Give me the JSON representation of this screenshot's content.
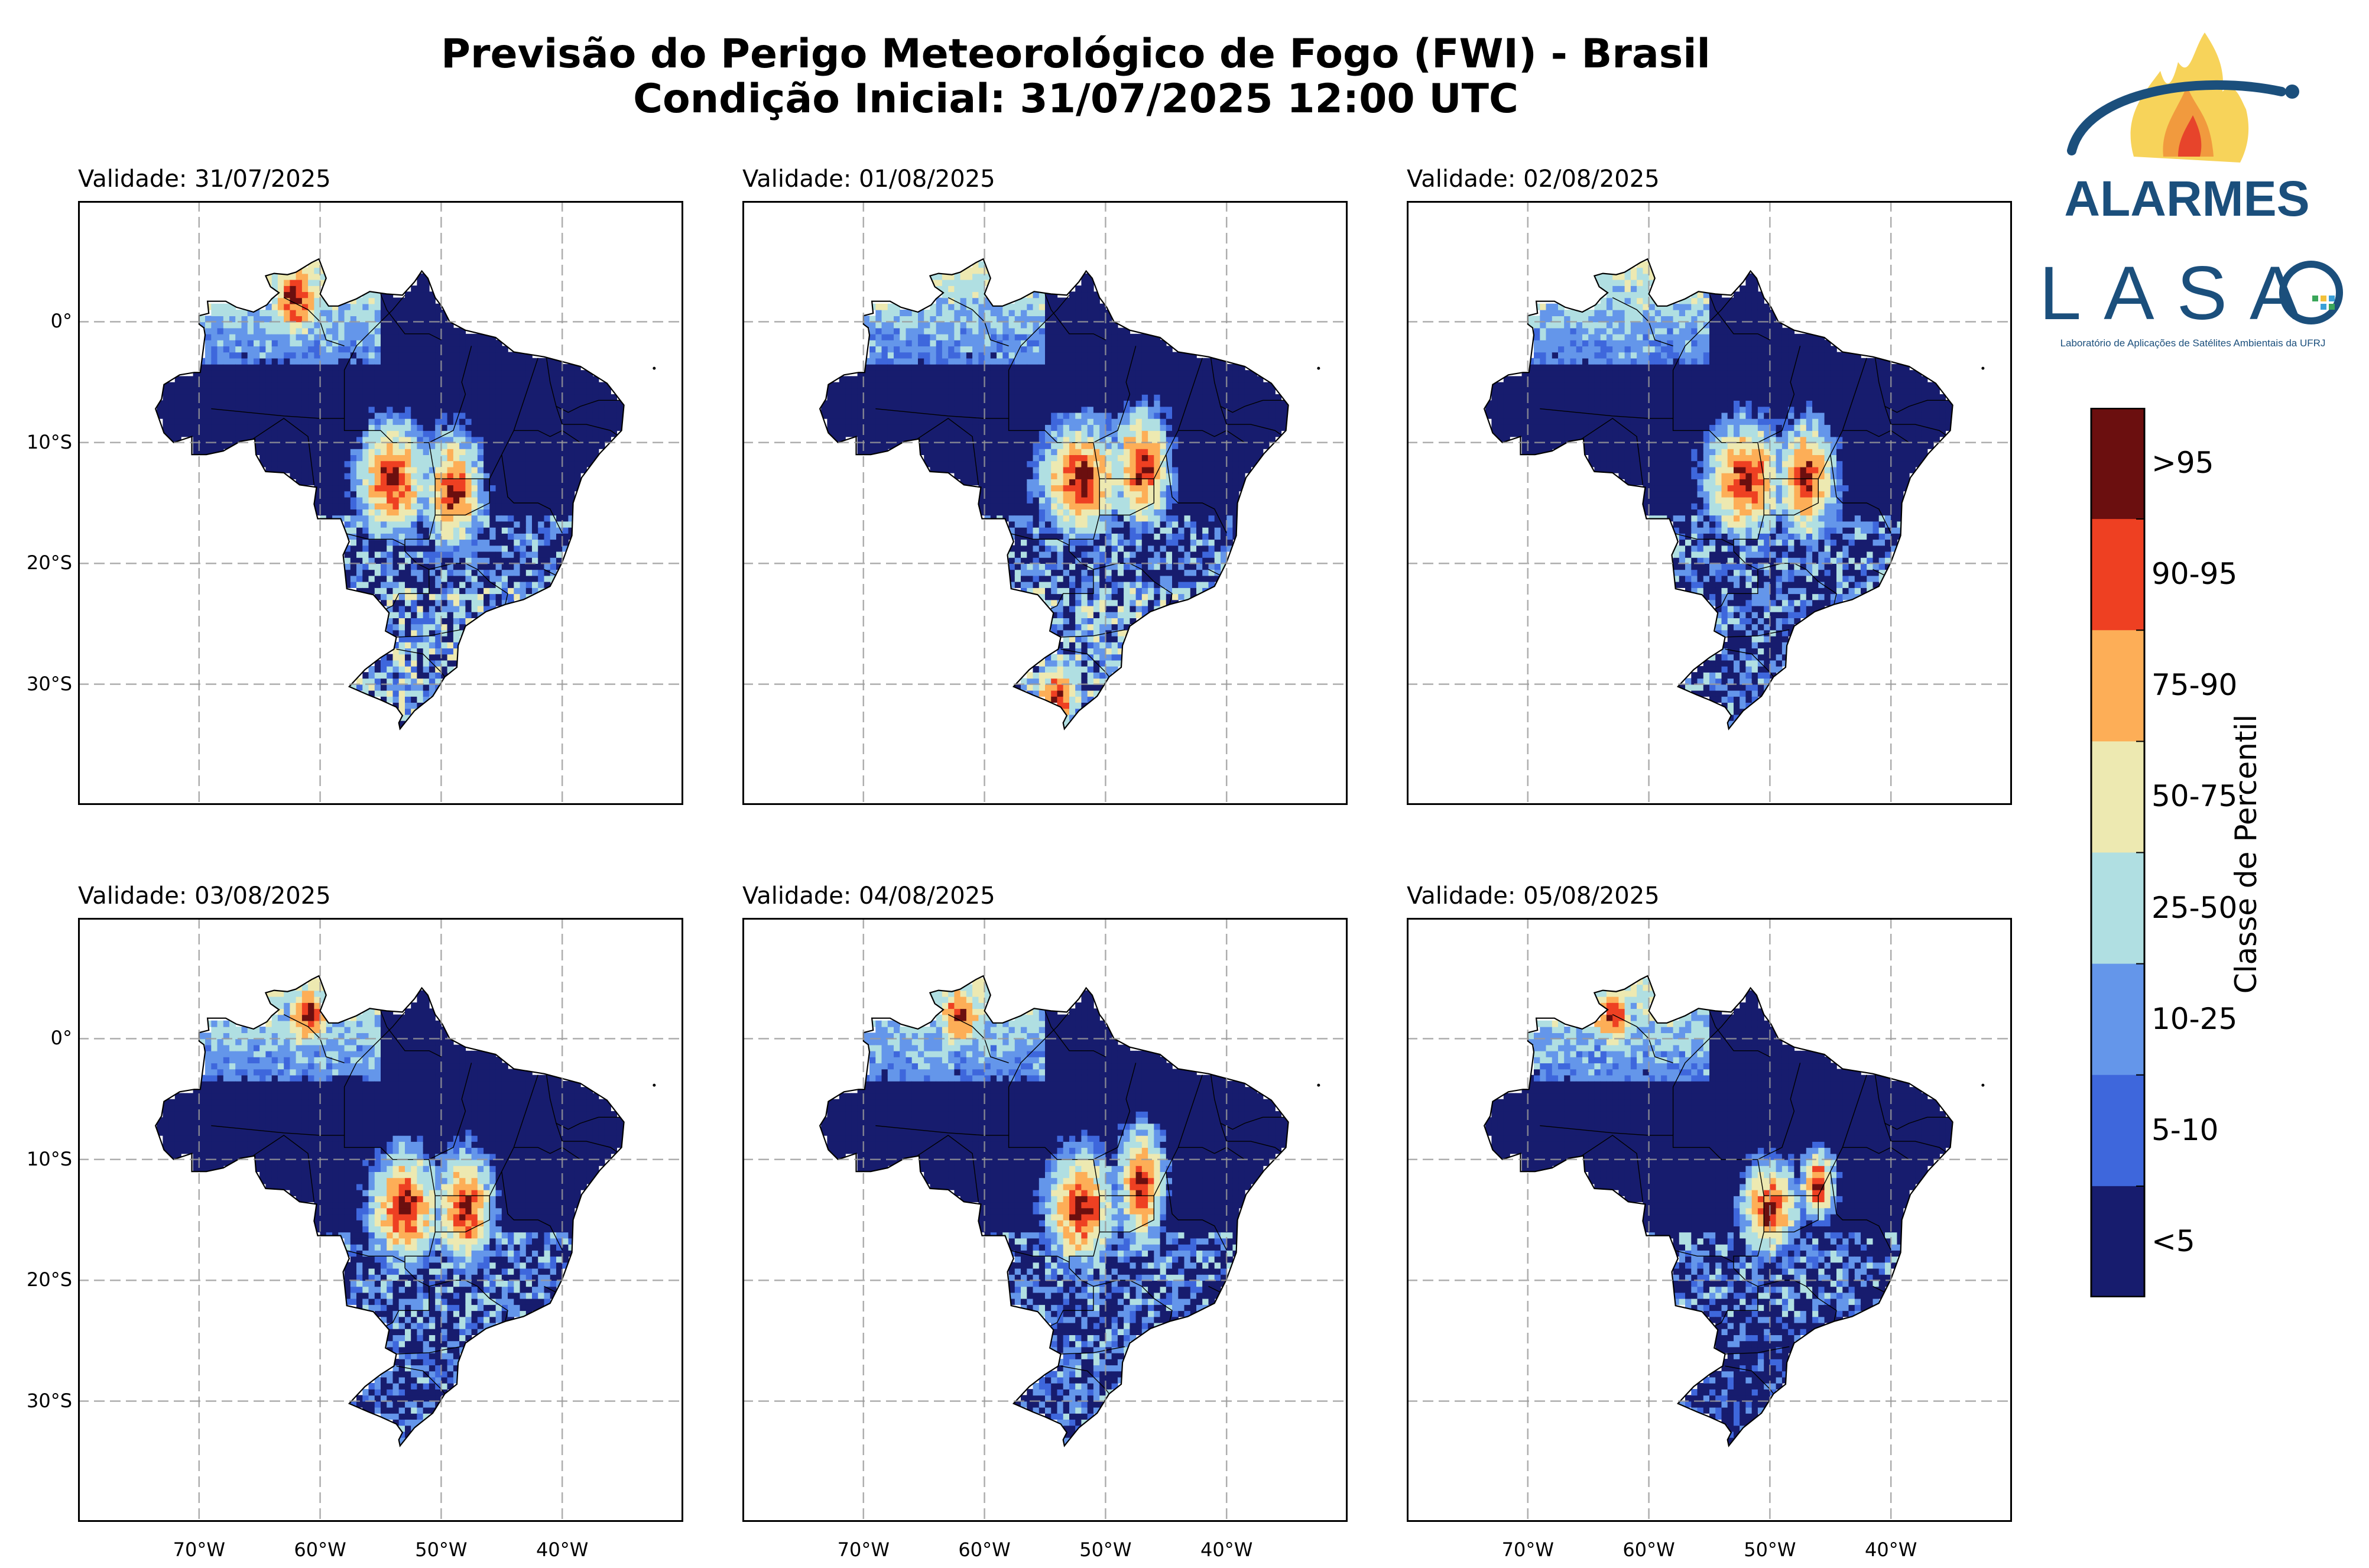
{
  "title": {
    "line1": "Previsão do Perigo Meteorológico de Fogo (FWI) - Brasil",
    "line2": "Condição Inicial: 31/07/2025 12:00 UTC"
  },
  "panels": [
    {
      "label": "Validade: 31/07/2025",
      "hotspots": [
        [
          -54,
          -13,
          3,
          5
        ],
        [
          -49,
          -14,
          2.5,
          5
        ],
        [
          -62,
          2,
          2.5,
          4
        ]
      ],
      "south": "light"
    },
    {
      "label": "Validade: 01/08/2025",
      "hotspots": [
        [
          -52,
          -13,
          3.5,
          5
        ],
        [
          -47,
          -12,
          2.5,
          5
        ],
        [
          -54,
          -31,
          2,
          3
        ]
      ],
      "south": "light"
    },
    {
      "label": "Validade: 02/08/2025",
      "hotspots": [
        [
          -52,
          -13,
          3.5,
          5
        ],
        [
          -47,
          -13,
          2.5,
          5
        ]
      ],
      "south": "blue"
    },
    {
      "label": "Validade: 03/08/2025",
      "hotspots": [
        [
          -53,
          -14,
          3,
          5
        ],
        [
          -48,
          -14,
          2.5,
          5
        ],
        [
          -61,
          2,
          2,
          3
        ]
      ],
      "south": "blue"
    },
    {
      "label": "Validade: 04/08/2025",
      "hotspots": [
        [
          -52,
          -14,
          3,
          5
        ],
        [
          -47,
          -12,
          2,
          5
        ],
        [
          -62,
          2,
          2,
          3
        ]
      ],
      "south": "blue"
    },
    {
      "label": "Validade: 05/08/2025",
      "hotspots": [
        [
          -50,
          -14,
          2.5,
          4
        ],
        [
          -46,
          -12,
          1.5,
          3
        ],
        [
          -63,
          2,
          2,
          3
        ]
      ],
      "south": "dark"
    }
  ],
  "axes": {
    "y_ticks": [
      {
        "lat": 0,
        "label": "0°"
      },
      {
        "lat": -10,
        "label": "10°S"
      },
      {
        "lat": -20,
        "label": "20°S"
      },
      {
        "lat": -30,
        "label": "30°S"
      }
    ],
    "x_ticks": [
      {
        "lon": -70,
        "label": "70°W"
      },
      {
        "lon": -60,
        "label": "60°W"
      },
      {
        "lon": -50,
        "label": "50°W"
      },
      {
        "lon": -40,
        "label": "40°W"
      }
    ],
    "lon_range": [
      -80,
      -30
    ],
    "lat_range": [
      -40,
      10
    ],
    "grid": true
  },
  "colorbar": {
    "title": "Classe de Percentil",
    "classes": [
      {
        "label": ">95",
        "color": "#6b0f0f"
      },
      {
        "label": "90-95",
        "color": "#ee4022"
      },
      {
        "label": "75-90",
        "color": "#fdae57"
      },
      {
        "label": "50-75",
        "color": "#ede9b1"
      },
      {
        "label": "25-50",
        "color": "#b0dfe2"
      },
      {
        "label": "10-25",
        "color": "#6496ea"
      },
      {
        "label": "5-10",
        "color": "#3e67dc"
      },
      {
        "label": "<5",
        "color": "#171c6e"
      }
    ]
  },
  "logos": {
    "alarmes": {
      "text": "ALARMES",
      "color": "#1b4f7c"
    },
    "lasa": {
      "text": "LASA",
      "subtitle": "Laboratório de Aplicações de Satélites Ambientais da UFRJ",
      "color": "#1b4f7c"
    }
  }
}
